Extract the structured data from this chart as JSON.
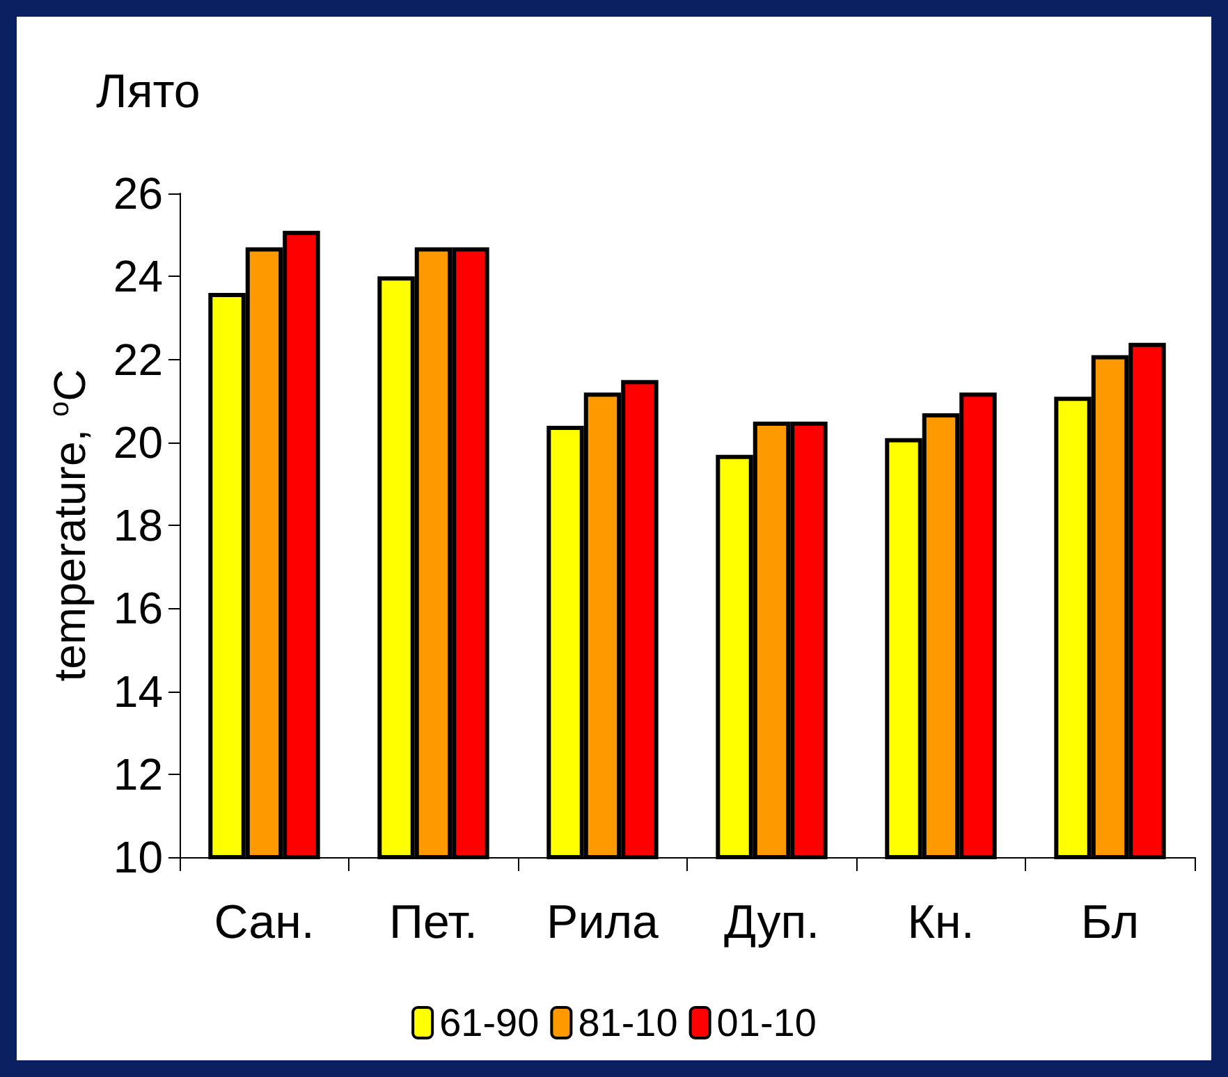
{
  "chart_data": {
    "type": "bar",
    "title": "Лято",
    "ylabel": "temperature, $^{o}$C",
    "categories": [
      "Сан.",
      "Пет.",
      "Рила",
      "Дуп.",
      "Кн.",
      "Бл"
    ],
    "series": [
      {
        "name": "61-90",
        "color": "#ffff00",
        "values": [
          23.6,
          24.0,
          20.4,
          19.7,
          20.1,
          21.1
        ]
      },
      {
        "name": "81-10",
        "color": "#ff9900",
        "values": [
          24.7,
          24.7,
          21.2,
          20.5,
          20.7,
          22.1
        ]
      },
      {
        "name": "01-10",
        "color": "#ff0000",
        "values": [
          25.1,
          24.7,
          21.5,
          20.5,
          21.2,
          22.4
        ]
      }
    ],
    "ylim": [
      10,
      26
    ],
    "yticks": [
      10,
      12,
      14,
      16,
      18,
      20,
      22,
      24,
      26
    ],
    "grid": false,
    "legend": "bottom"
  }
}
